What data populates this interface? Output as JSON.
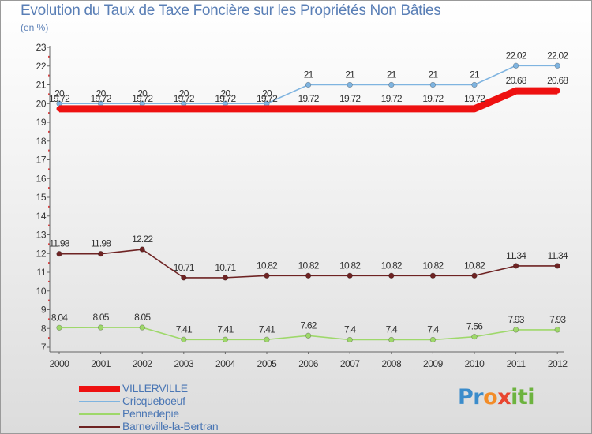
{
  "header": {
    "title": "Evolution du Taux de Taxe Foncière sur les Propriétés Non Bâties",
    "unit": "(en %)"
  },
  "brand": {
    "logo_letters": [
      "P",
      "r",
      "o",
      "x",
      "i",
      "t",
      "i"
    ],
    "logo_colors": [
      "#3b8ccb",
      "#3b8ccb",
      "#f28c28",
      "#e8452f",
      "#6db33f",
      "#6db33f",
      "#6db33f"
    ]
  },
  "chart_data": {
    "type": "line",
    "title": "Evolution du Taux de Taxe Foncière sur les Propriétés Non Bâties",
    "ylabel": "(en %)",
    "xlabel": "",
    "ylim": [
      7,
      23
    ],
    "yticks": [
      7,
      8,
      9,
      10,
      11,
      12,
      13,
      14,
      15,
      16,
      17,
      18,
      19,
      20,
      21,
      22,
      23
    ],
    "grid": false,
    "legend_position": "bottom-left",
    "x": [
      "2000",
      "2001",
      "2002",
      "2003",
      "2004",
      "2005",
      "2006",
      "2007",
      "2008",
      "2009",
      "2010",
      "2011",
      "2012"
    ],
    "series": [
      {
        "name": "Barneville-la-Bertran",
        "color": "#6e2323",
        "values": [
          11.98,
          11.98,
          12.22,
          10.71,
          10.71,
          10.82,
          10.82,
          10.82,
          10.82,
          10.82,
          10.82,
          11.34,
          11.34
        ],
        "labels": [
          "11.98",
          "11.98",
          "12.22",
          "10.71",
          "10.71",
          "10.82",
          "10.82",
          "10.82",
          "10.82",
          "10.82",
          "10.82",
          "11.34",
          "11.34"
        ]
      },
      {
        "name": "Pennedepie",
        "color": "#9ed86a",
        "values": [
          8.04,
          8.05,
          8.05,
          7.41,
          7.41,
          7.41,
          7.62,
          7.4,
          7.4,
          7.4,
          7.56,
          7.93,
          7.93
        ],
        "labels": [
          "8.04",
          "8.05",
          "8.05",
          "7.41",
          "7.41",
          "7.41",
          "7.62",
          "7.4",
          "7.4",
          "7.4",
          "7.56",
          "7.93",
          "7.93"
        ]
      },
      {
        "name": "Cricqueboeuf",
        "color": "#7fb4e0",
        "values": [
          20,
          20,
          20,
          20,
          20,
          20,
          21,
          21,
          21,
          21,
          21,
          22.02,
          22.02
        ],
        "labels": [
          "20",
          "20",
          "20",
          "20",
          "20",
          "20",
          "21",
          "21",
          "21",
          "21",
          "21",
          "22.02",
          "22.02"
        ]
      },
      {
        "name": "VILLERVILLE",
        "color": "#ee1111",
        "values": [
          19.72,
          19.72,
          19.72,
          19.72,
          19.72,
          19.72,
          19.72,
          19.72,
          19.72,
          19.72,
          19.72,
          20.68,
          20.68
        ],
        "labels": [
          "19.72",
          "19.72",
          "19.72",
          "19.72",
          "19.72",
          "19.72",
          "19.72",
          "19.72",
          "19.72",
          "19.72",
          "19.72",
          "20.68",
          "20.68"
        ]
      }
    ],
    "legend_order": [
      "VILLERVILLE",
      "Cricqueboeuf",
      "Pennedepie",
      "Barneville-la-Bertran"
    ]
  }
}
